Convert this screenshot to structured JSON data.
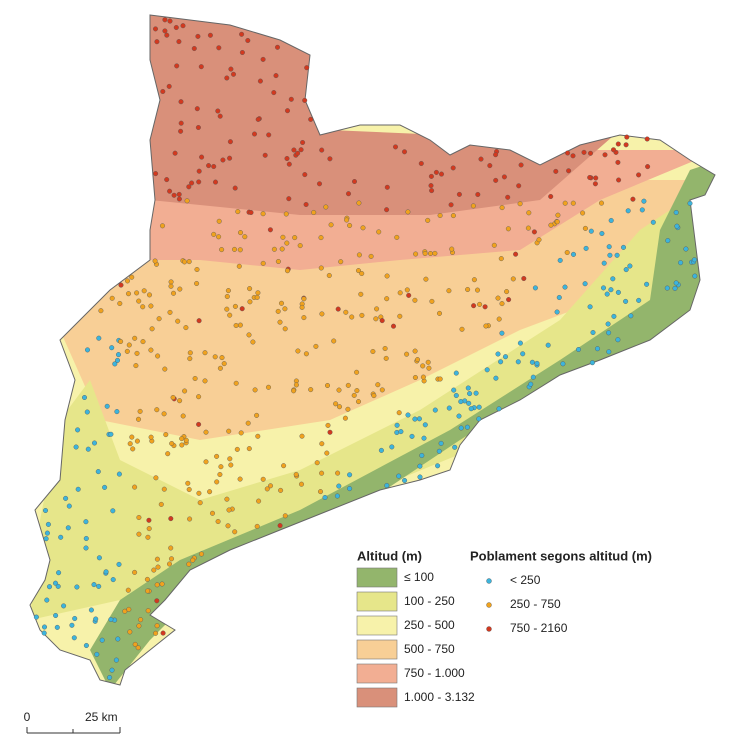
{
  "legend_altitude": {
    "title": "Altitud (m)",
    "items": [
      {
        "label": "≤ 100",
        "color": "#93b56c"
      },
      {
        "label": "100 - 250",
        "color": "#e6e68a"
      },
      {
        "label": "250 - 500",
        "color": "#f7f2aa"
      },
      {
        "label": "500 - 750",
        "color": "#f8cf96"
      },
      {
        "label": "750 - 1.000",
        "color": "#f2ae93"
      },
      {
        "label": "1.000 - 3.132",
        "color": "#d9907a"
      }
    ]
  },
  "legend_settlement": {
    "title": "Poblament segons altitud (m)",
    "items": [
      {
        "label": "< 250",
        "color": "#3cb4dc"
      },
      {
        "label": "250 - 750",
        "color": "#f0a21e"
      },
      {
        "label": "750 - 2160",
        "color": "#d2391f"
      }
    ]
  },
  "scale_bar": {
    "labels": [
      "0",
      "25 km"
    ]
  }
}
